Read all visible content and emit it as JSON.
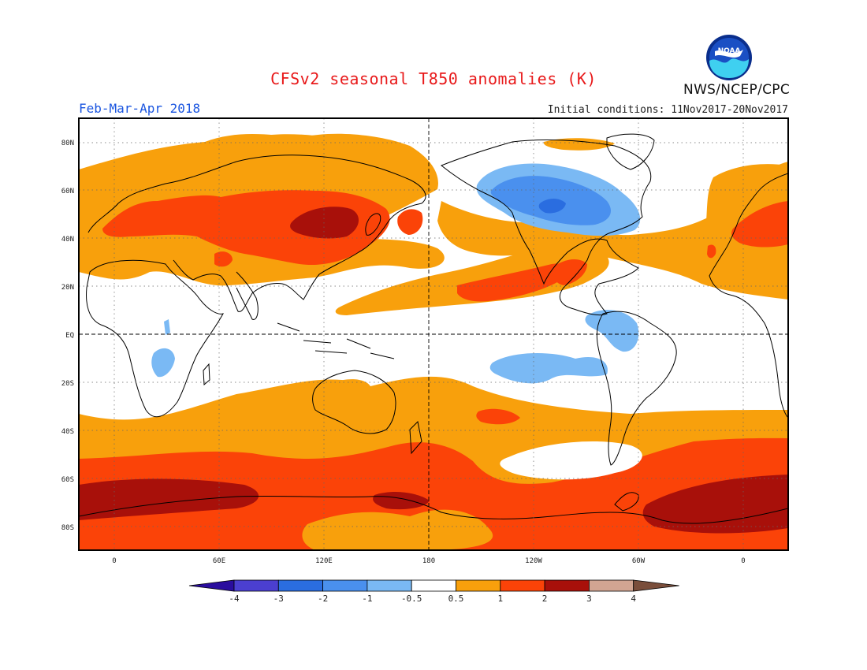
{
  "title": "CFSv2 seasonal T850 anomalies (K)",
  "season": "Feb-Mar-Apr 2018",
  "initial_conditions": "Initial conditions: 11Nov2017-20Nov2017",
  "agency": "NWS/NCEP/CPC",
  "logo_text": "NOAA",
  "lat_labels": [
    "80N",
    "60N",
    "40N",
    "20N",
    "EQ",
    "20S",
    "40S",
    "60S",
    "80S"
  ],
  "lon_labels": [
    "0",
    "60E",
    "120E",
    "180",
    "120W",
    "60W",
    "0"
  ],
  "colorbar": {
    "labels": [
      "-4",
      "-3",
      "-2",
      "-1",
      "-0.5",
      "0.5",
      "1",
      "2",
      "3",
      "4"
    ],
    "colors": [
      "#2a0d9e",
      "#4b3fd0",
      "#2a6de0",
      "#4a90ee",
      "#7ab9f4",
      "#ffffff",
      "#f8a00c",
      "#fb4308",
      "#a8100a",
      "#d2a592",
      "#7a4e3b"
    ],
    "units": "K"
  },
  "palette": {
    "light_orange": "#f8a00c",
    "red_orange": "#fb4308",
    "dark_red": "#a8100a",
    "light_blue": "#7ab9f4",
    "mid_blue": "#4a90ee"
  }
}
